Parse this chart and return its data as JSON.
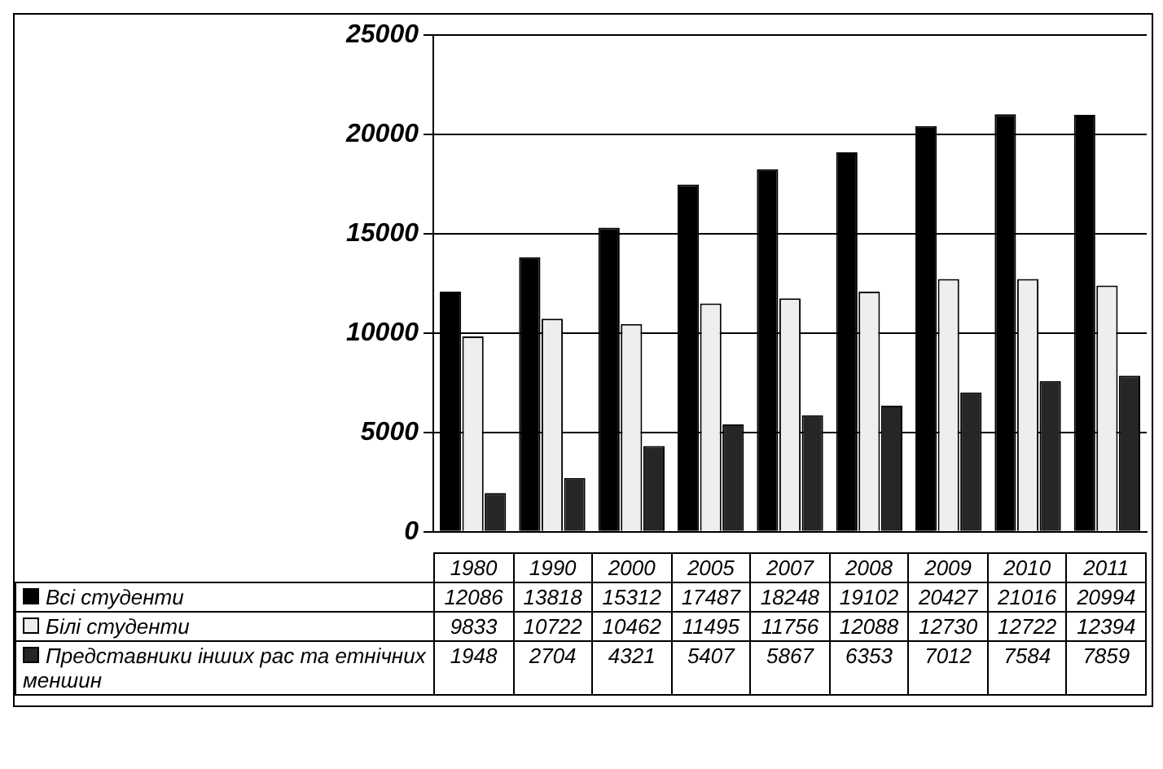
{
  "chart_data": {
    "type": "bar",
    "categories": [
      "1980",
      "1990",
      "2000",
      "2005",
      "2007",
      "2008",
      "2009",
      "2010",
      "2011"
    ],
    "series": [
      {
        "name": "Всі студенти",
        "color": "#000000",
        "values": [
          12086,
          13818,
          15312,
          17487,
          18248,
          19102,
          20427,
          21016,
          20994
        ]
      },
      {
        "name": "Білі студенти",
        "color": "#eeeeee",
        "values": [
          9833,
          10722,
          10462,
          11495,
          11756,
          12088,
          12730,
          12722,
          12394
        ]
      },
      {
        "name": "Представники інших рас та етнічних меншин",
        "color": "#262626",
        "values": [
          1948,
          2704,
          4321,
          5407,
          5867,
          6353,
          7012,
          7584,
          7859
        ]
      }
    ],
    "ylim": [
      0,
      25000
    ],
    "yticks": [
      0,
      5000,
      10000,
      15000,
      20000,
      25000
    ],
    "grid": "y",
    "legend": "bottom",
    "data_labels": true
  }
}
